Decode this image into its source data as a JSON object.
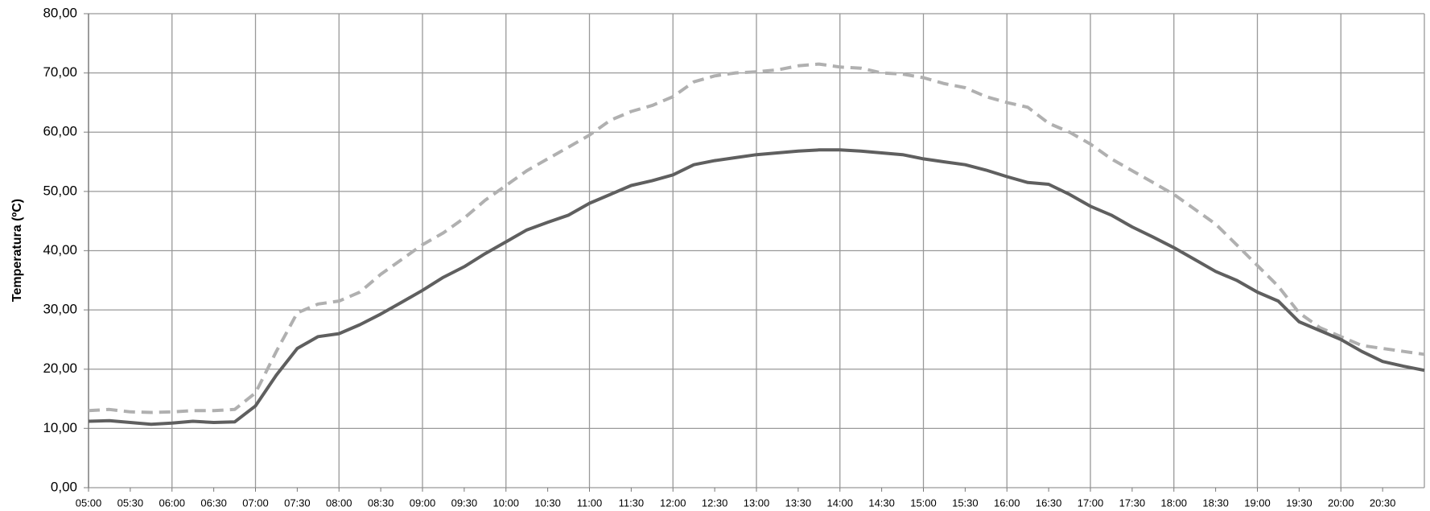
{
  "chart_data": {
    "type": "line",
    "y_label": "Temperatura (ºC)",
    "categories": [
      "05:00",
      null,
      "05:30",
      null,
      "06:00",
      null,
      "06:30",
      null,
      "07:00",
      null,
      "07:30",
      null,
      "08:00",
      null,
      "08:30",
      null,
      "09:00",
      null,
      "09:30",
      null,
      "10:00",
      null,
      "10:30",
      null,
      "11:00",
      null,
      "11:30",
      null,
      "12:00",
      null,
      "12:30",
      null,
      "13:00",
      null,
      "13:30",
      null,
      "14:00",
      null,
      "14:30",
      null,
      "15:00",
      null,
      "15:30",
      null,
      "16:00",
      null,
      "16:30",
      null,
      "17:00",
      null,
      "17:30",
      null,
      "18:00",
      null,
      "18:30",
      null,
      "19:00",
      null,
      "19:30",
      null,
      "20:00",
      null,
      "20:30",
      null,
      null
    ],
    "series": [
      {
        "color": "#5f5f5f",
        "values": [
          11.2,
          11.3,
          11.0,
          10.7,
          10.9,
          11.2,
          11.0,
          11.1,
          13.8,
          19.0,
          23.5,
          25.5,
          26.0,
          27.5,
          29.3,
          31.3,
          33.3,
          35.5,
          37.3,
          39.5,
          41.5,
          43.5,
          44.8,
          46.0,
          48.0,
          49.5,
          51.0,
          51.8,
          52.8,
          54.5,
          55.2,
          55.7,
          56.2,
          56.5,
          56.8,
          57.0,
          57.0,
          56.8,
          56.5,
          56.2,
          55.5,
          55.0,
          54.5,
          53.6,
          52.5,
          51.5,
          51.2,
          49.5,
          47.5,
          46.0,
          44.0,
          42.3,
          40.5,
          38.5,
          36.5,
          35.0,
          33.0,
          31.5,
          28.0,
          26.5,
          25.0,
          23.0,
          21.3,
          20.5,
          19.8
        ]
      },
      {
        "color": "#b0b0b0",
        "values": [
          13.0,
          13.2,
          12.8,
          12.7,
          12.8,
          13.0,
          13.0,
          13.2,
          16.0,
          23.0,
          29.5,
          31.0,
          31.5,
          33.0,
          36.0,
          38.5,
          41.0,
          43.0,
          45.5,
          48.5,
          51.0,
          53.5,
          55.5,
          57.5,
          59.5,
          62.0,
          63.5,
          64.5,
          66.0,
          68.5,
          69.5,
          70.0,
          70.2,
          70.5,
          71.2,
          71.5,
          71.0,
          70.8,
          70.0,
          69.8,
          69.2,
          68.2,
          67.5,
          66.0,
          65.0,
          64.2,
          61.5,
          60.0,
          58.0,
          55.5,
          53.5,
          51.5,
          49.5,
          47.0,
          44.5,
          41.0,
          37.5,
          34.0,
          29.5,
          27.0,
          25.5,
          24.0,
          23.5,
          23.0,
          22.5
        ]
      }
    ],
    "ylim": [
      0,
      80
    ],
    "yticks": [
      {
        "value": 0,
        "label": "0,00"
      },
      {
        "value": 10,
        "label": "10,00"
      },
      {
        "value": 20,
        "label": "20,00"
      },
      {
        "value": 30,
        "label": "30,00"
      },
      {
        "value": 40,
        "label": "40,00"
      },
      {
        "value": 50,
        "label": "50,00"
      },
      {
        "value": 60,
        "label": "60,00"
      },
      {
        "value": 70,
        "label": "70,00"
      },
      {
        "value": 80,
        "label": "80,00"
      }
    ],
    "grid": true
  }
}
